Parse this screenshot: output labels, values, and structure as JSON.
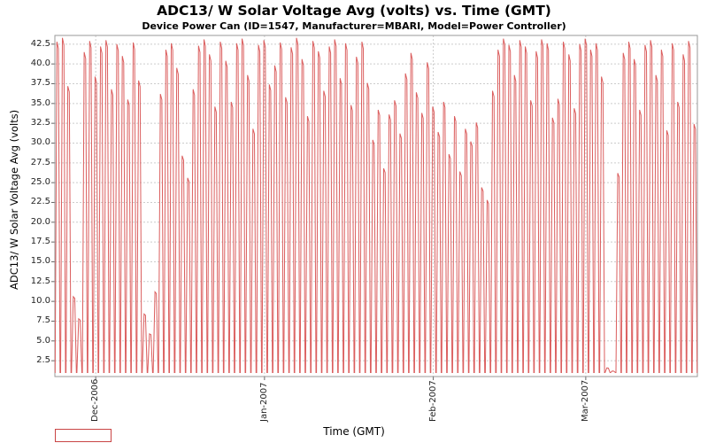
{
  "title": "ADC13/ W Solar Voltage Avg (volts) vs. Time (GMT)",
  "subtitle": "Device Power Can (ID=1547, Manufacturer=MBARI, Model=Power Controller)",
  "axes": {
    "y_label": "ADC13/ W Solar Voltage Avg (volts)",
    "x_label": "Time (GMT)"
  },
  "legend": {
    "visible": true,
    "style": "red-outlined-rectangle",
    "border_color": "#c94444"
  },
  "colors": {
    "series": "#db5e5e",
    "grid": "#cccccc",
    "plot_border": "#9a9a9a",
    "tick_mark": "#666666",
    "background": "#ffffff"
  },
  "chart_data": {
    "type": "line",
    "title": "ADC13/ W Solar Voltage Avg (volts) vs. Time (GMT)",
    "subtitle": "Device Power Can (ID=1547, Manufacturer=MBARI, Model=Power Controller)",
    "xlabel": "Time (GMT)",
    "ylabel": "ADC13/ W Solar Voltage Avg (volts)",
    "grid": "dashed",
    "legend_position": "bottom-left",
    "ylim": [
      0.5,
      43.6
    ],
    "y_ticks": [
      2.5,
      5.0,
      7.5,
      10.0,
      12.5,
      15.0,
      17.5,
      20.0,
      22.5,
      25.0,
      27.5,
      30.0,
      32.5,
      35.0,
      37.5,
      40.0,
      42.5
    ],
    "x_ticks": [
      {
        "label": "Dec-2006",
        "day_index": 7
      },
      {
        "label": "Jan-2007",
        "day_index": 38
      },
      {
        "label": "Feb-2007",
        "day_index": 69
      },
      {
        "label": "Mar-2007",
        "day_index": 97
      }
    ],
    "series": [
      {
        "name": "ADC13/ W Solar Voltage Avg",
        "color": "#db5e5e"
      }
    ],
    "start_date": "2006-11-24",
    "days_total": 118,
    "baseline_volts": 1.0,
    "daily_peaks_volts": [
      42.8,
      43.3,
      37.2,
      10.6,
      7.8,
      41.5,
      42.9,
      38.4,
      42.2,
      43.0,
      36.8,
      42.5,
      41.0,
      35.5,
      42.7,
      37.9,
      8.4,
      5.9,
      11.2,
      36.2,
      41.8,
      42.6,
      39.5,
      28.4,
      25.6,
      36.8,
      42.3,
      43.1,
      41.2,
      34.6,
      42.8,
      40.4,
      35.2,
      42.6,
      43.2,
      38.6,
      31.8,
      42.4,
      43.0,
      37.4,
      39.8,
      42.7,
      35.8,
      42.1,
      43.3,
      40.6,
      33.4,
      42.9,
      41.6,
      36.6,
      42.2,
      43.1,
      38.2,
      42.6,
      34.8,
      40.9,
      42.8,
      37.6,
      30.4,
      34.2,
      26.8,
      33.6,
      35.4,
      31.2,
      38.8,
      41.4,
      36.4,
      33.8,
      40.2,
      34.6,
      31.4,
      35.2,
      28.6,
      33.4,
      26.4,
      31.8,
      30.2,
      32.6,
      24.4,
      22.8,
      36.6,
      41.8,
      43.2,
      42.4,
      38.6,
      43.0,
      42.2,
      35.4,
      41.6,
      43.1,
      42.6,
      33.2,
      35.6,
      42.8,
      41.2,
      34.4,
      42.5,
      43.2,
      41.8,
      42.6,
      38.4,
      1.6,
      1.2,
      26.2,
      41.4,
      42.8,
      40.6,
      34.2,
      42.4,
      43.0,
      38.6,
      41.8,
      31.6,
      42.6,
      35.2,
      41.2,
      42.9,
      32.4
    ]
  }
}
